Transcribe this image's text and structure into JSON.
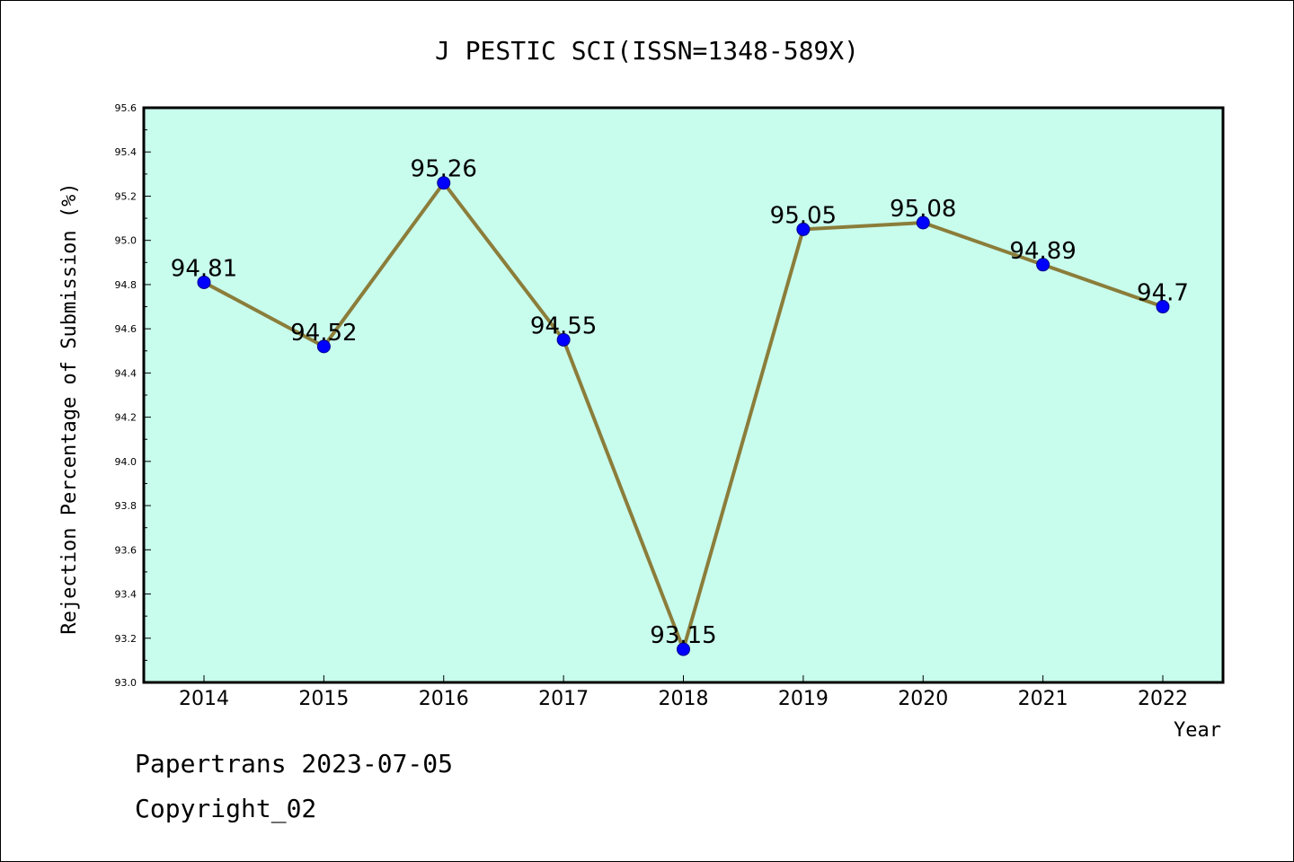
{
  "chart_data": {
    "type": "line",
    "title": "J PESTIC SCI(ISSN=1348-589X)",
    "ylabel": "Rejection Percentage of Submission (%)",
    "xlabel": "Year",
    "categories": [
      "2014",
      "2015",
      "2016",
      "2017",
      "2018",
      "2019",
      "2020",
      "2021",
      "2022"
    ],
    "values": [
      94.81,
      94.52,
      95.26,
      94.55,
      93.15,
      95.05,
      95.08,
      94.89,
      94.7
    ],
    "data_labels": [
      "94.81",
      "94.52",
      "95.26",
      "94.55",
      "93.15",
      "95.05",
      "95.08",
      "94.89",
      "94.7"
    ],
    "ylim": [
      93.0,
      95.6
    ],
    "yticks": [
      93.0,
      93.2,
      93.4,
      93.6,
      93.8,
      94.0,
      94.2,
      94.4,
      94.6,
      94.8,
      95.0,
      95.2,
      95.4,
      95.6
    ],
    "ytick_labels": [
      "93.0",
      "93.2",
      "93.4",
      "93.6",
      "93.8",
      "94.0",
      "94.2",
      "94.4",
      "94.6",
      "94.8",
      "95.0",
      "95.2",
      "95.4",
      "95.6"
    ],
    "grid": false,
    "colors": {
      "plot_background": "#c8fced",
      "line": "#8b7d3a",
      "marker": "#0000ff"
    }
  },
  "footer": {
    "line1": "Papertrans 2023-07-05",
    "line2": "Copyright_02"
  }
}
